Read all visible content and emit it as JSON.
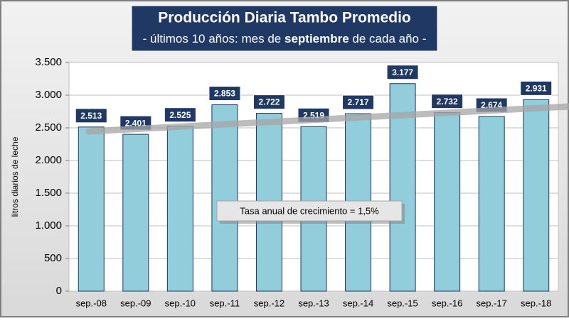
{
  "chart_data": {
    "type": "bar",
    "title": "Producción Diaria Tambo Promedio",
    "subtitle": {
      "before": "- últimos 10 años: mes de ",
      "bold": "septiembre",
      "after": " de cada año -"
    },
    "ylabel": "litros diarios de leche",
    "annotation": "Tasa anual de crecimiento = 1,5%",
    "categories": [
      "sep.-08",
      "sep.-09",
      "sep.-10",
      "sep.-11",
      "sep.-12",
      "sep.-13",
      "sep.-14",
      "sep.-15",
      "sep.-16",
      "sep.-17",
      "sep.-18"
    ],
    "values": [
      2513,
      2401,
      2525,
      2853,
      2722,
      2519,
      2717,
      3177,
      2732,
      2674,
      2931
    ],
    "value_labels": [
      "2.513",
      "2.401",
      "2.525",
      "2.853",
      "2.722",
      "2.519",
      "2.717",
      "3.177",
      "2.732",
      "2.674",
      "2.931"
    ],
    "color": "#92cddc",
    "ylim": [
      0,
      3500
    ],
    "yticks": [
      0,
      500,
      {
        "value": 1000,
        "label": "1.000"
      },
      {
        "value": 1500,
        "label": "1.500"
      },
      {
        "value": 2000,
        "label": "2.000"
      },
      {
        "value": 2500,
        "label": "2.500"
      },
      {
        "value": 3000,
        "label": "3.000"
      },
      {
        "value": 3500,
        "label": "3.500"
      }
    ],
    "grid": true
  }
}
